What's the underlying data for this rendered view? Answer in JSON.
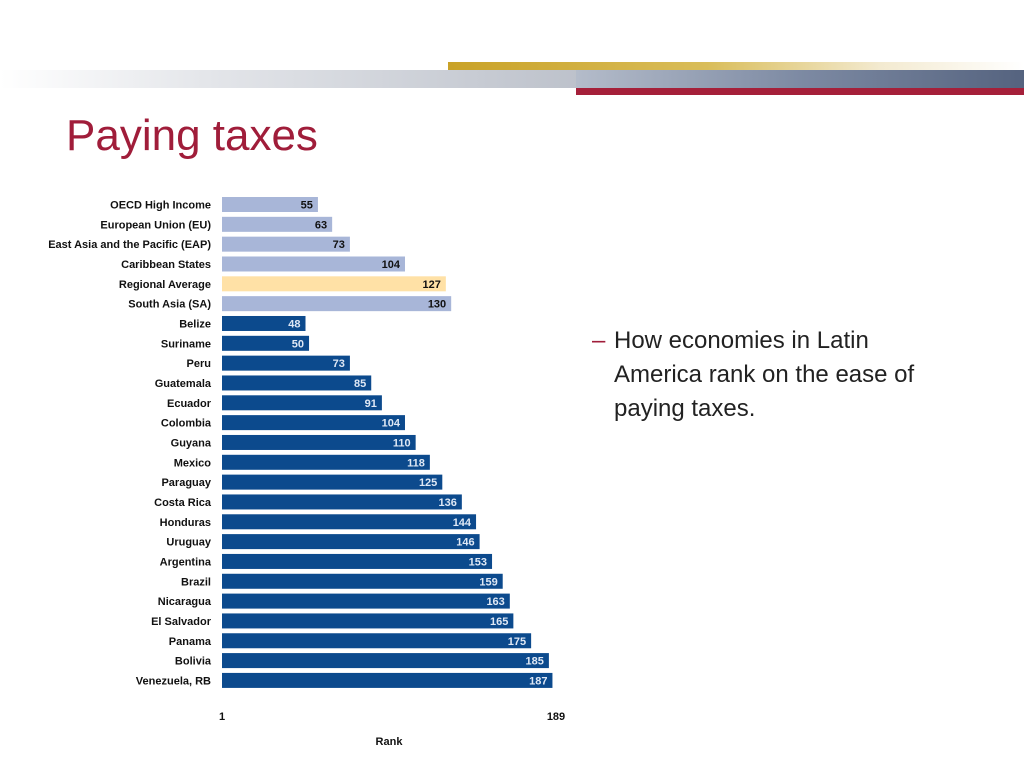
{
  "slide": {
    "title": "Paying taxes",
    "bullet_dash": "–",
    "bullet_text": "How economies in Latin America rank on the ease of paying taxes."
  },
  "colors": {
    "title": "#a01d3a",
    "bar_benchmark": "#a8b6d8",
    "bar_regional_average": "#ffe1a6",
    "bar_country": "#0c4a8d",
    "label_dark": "#111111",
    "label_light": "#dfe8f5"
  },
  "chart_data": {
    "type": "bar",
    "orientation": "horizontal",
    "categories": [
      "OECD High Income",
      "European Union (EU)",
      "East Asia and the Pacific (EAP)",
      "Caribbean States",
      "Regional Average",
      "South Asia (SA)",
      "Belize",
      "Suriname",
      "Peru",
      "Guatemala",
      "Ecuador",
      "Colombia",
      "Guyana",
      "Mexico",
      "Paraguay",
      "Costa Rica",
      "Honduras",
      "Uruguay",
      "Argentina",
      "Brazil",
      "Nicaragua",
      "El Salvador",
      "Panama",
      "Bolivia",
      "Venezuela, RB"
    ],
    "values": [
      55,
      63,
      73,
      104,
      127,
      130,
      48,
      50,
      73,
      85,
      91,
      104,
      110,
      118,
      125,
      136,
      144,
      146,
      153,
      159,
      163,
      165,
      175,
      185,
      187
    ],
    "groups": [
      "benchmark",
      "benchmark",
      "benchmark",
      "benchmark",
      "regional_average",
      "benchmark",
      "country",
      "country",
      "country",
      "country",
      "country",
      "country",
      "country",
      "country",
      "country",
      "country",
      "country",
      "country",
      "country",
      "country",
      "country",
      "country",
      "country",
      "country",
      "country"
    ],
    "xlabel": "Rank",
    "ylabel": "",
    "xlim": [
      1,
      189
    ],
    "x_tick_labels": [
      "1",
      "189"
    ],
    "data_labels": true,
    "grid": false,
    "legend": false
  }
}
